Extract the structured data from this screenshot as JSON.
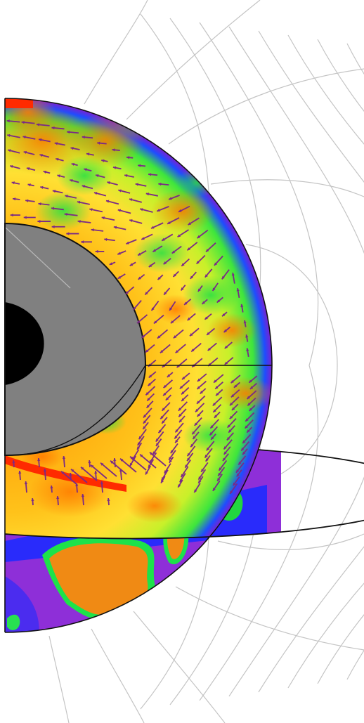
{
  "figure": {
    "kind": "cutaway-planet",
    "colors": {
      "background": "#ffffff",
      "field_line": "#c4c4c4",
      "outline": "#111111",
      "inner_core": "#000000",
      "outer_core": "#808080",
      "flow_arrow": "#7a2a86",
      "heat_high": "#ff2a00",
      "heat_mid": "#ffb300",
      "heat_low": "#ffff33",
      "heat_cool": "#33e63c",
      "heat_cold": "#1a3cff",
      "heat_coldest": "#8a18c8",
      "continent": "#f08a14",
      "ocean": "#8e2fd8"
    }
  }
}
